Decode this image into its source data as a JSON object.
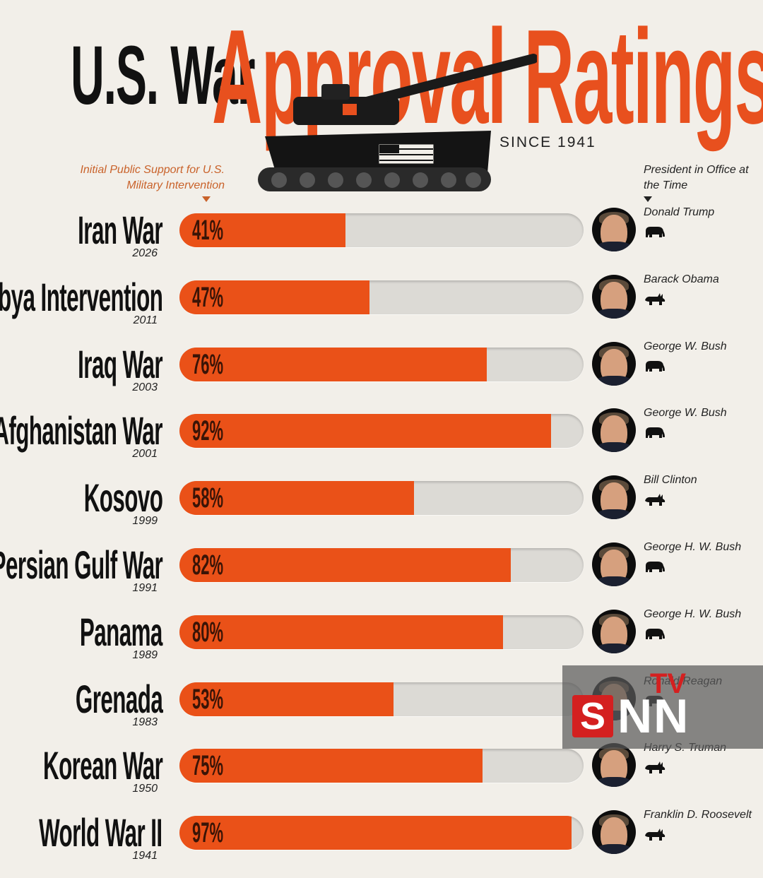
{
  "title": {
    "part1": "U.S. War",
    "part2": "Approval Ratings",
    "since": "SINCE 1941"
  },
  "notes": {
    "support": "Initial Public Support for U.S. Military Intervention",
    "president": "President in Office at the Time"
  },
  "colors": {
    "accent": "#ea5118",
    "track": "#dcdad5",
    "background": "#f2efe9"
  },
  "chart_data": {
    "type": "bar",
    "orientation": "horizontal",
    "ylim": [
      0,
      100
    ],
    "categories": [
      "Iran War",
      "Libya Intervention",
      "Iraq War",
      "Afghanistan War",
      "Kosovo",
      "Persian Gulf War",
      "Panama",
      "Grenada",
      "Korean War",
      "World War II"
    ],
    "years": [
      "2026",
      "2011",
      "2003",
      "2001",
      "1999",
      "1991",
      "1989",
      "1983",
      "1950",
      "1941"
    ],
    "values": [
      41,
      47,
      76,
      92,
      58,
      82,
      80,
      53,
      75,
      97
    ],
    "labels": [
      "41%",
      "47%",
      "76%",
      "92%",
      "58%",
      "82%",
      "80%",
      "53%",
      "75%",
      "97%"
    ],
    "presidents": [
      "Donald Trump",
      "Barack Obama",
      "George W. Bush",
      "George W. Bush",
      "Bill Clinton",
      "George H. W. Bush",
      "George H. W. Bush",
      "Ronald Reagan",
      "Harry S. Truman",
      "Franklin D. Roosevelt"
    ],
    "party_icons": [
      "elephant-icon",
      "donkey-icon",
      "elephant-icon",
      "elephant-icon",
      "donkey-icon",
      "elephant-icon",
      "elephant-icon",
      "elephant-icon",
      "donkey-icon",
      "donkey-icon"
    ]
  },
  "watermark": {
    "s": "S",
    "nn": "NN",
    "tv": "TV"
  }
}
